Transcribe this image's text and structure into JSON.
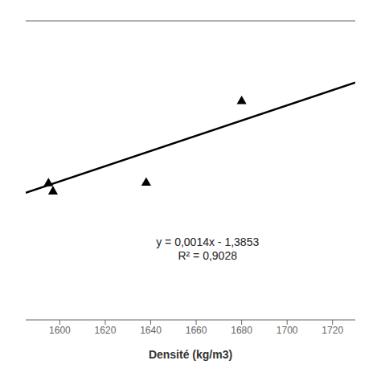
{
  "chart_data": {
    "type": "scatter",
    "xlabel": "Densité (kg/m3)",
    "xlim": [
      1585,
      1730
    ],
    "xticks": [
      1600,
      1620,
      1640,
      1660,
      1680,
      1700,
      1720
    ],
    "ylim": [
      0.6,
      1.15
    ],
    "tick_labels": "x",
    "grid": false,
    "series": [
      {
        "type": "scatter",
        "marker": "triangle",
        "color": "black",
        "x": [
          1595,
          1597,
          1638,
          1680
        ],
        "values": [
          0.851,
          0.836,
          0.852,
          1.002
        ]
      },
      {
        "type": "line",
        "color": "black",
        "line_style": "solid",
        "x": [
          1585,
          1730
        ],
        "values": [
          0.8337,
          1.0367
        ]
      }
    ],
    "annotations": [
      {
        "text": [
          "y = 0,0014x - 1,3853",
          "R² = 0,9028"
        ],
        "x": 1665,
        "y": 0.73
      }
    ]
  }
}
